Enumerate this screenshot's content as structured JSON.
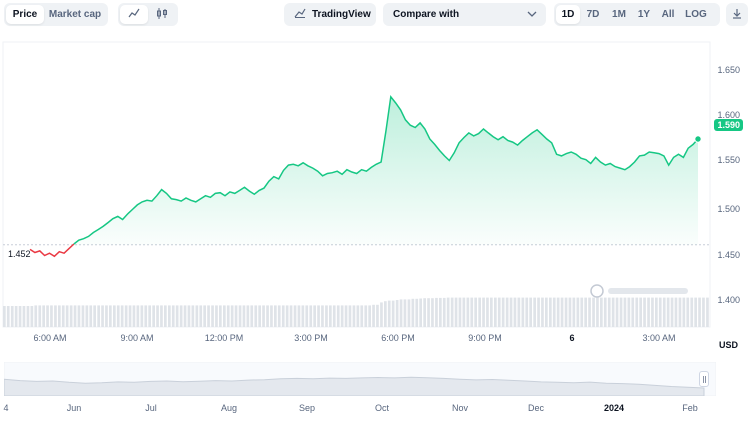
{
  "toolbar": {
    "metric_tabs": [
      "Price",
      "Market cap"
    ],
    "trading_view_label": "TradingView",
    "compare_label": "Compare with",
    "ranges": [
      "1D",
      "7D",
      "1M",
      "1Y",
      "All",
      "LOG"
    ],
    "active_range": "1D"
  },
  "chart_data": {
    "type": "line",
    "y_ticks": [
      "1.650",
      "1.600",
      "1.550",
      "1.500",
      "1.450",
      "1.400"
    ],
    "ylim": [
      1.38,
      1.68
    ],
    "x_ticks": [
      "6:00 AM",
      "9:00 AM",
      "12:00 PM",
      "3:00 PM",
      "6:00 PM",
      "9:00 PM",
      "6",
      "3:00 AM"
    ],
    "currency": "USD",
    "start_price_label": "1.452",
    "current_price_label": "1.590",
    "start_price": 1.452,
    "series": [
      {
        "values": [
          1.446,
          1.442,
          1.444,
          1.438,
          1.441,
          1.437,
          1.443,
          1.441,
          1.447,
          1.453,
          1.458,
          1.46,
          1.463,
          1.468,
          1.472,
          1.476,
          1.481,
          1.486,
          1.489,
          1.485,
          1.492,
          1.498,
          1.504,
          1.508,
          1.51,
          1.509,
          1.516,
          1.524,
          1.519,
          1.512,
          1.511,
          1.509,
          1.513,
          1.51,
          1.508,
          1.512,
          1.516,
          1.514,
          1.519,
          1.52,
          1.516,
          1.521,
          1.519,
          1.523,
          1.527,
          1.522,
          1.518,
          1.523,
          1.526,
          1.535,
          1.541,
          1.538,
          1.549,
          1.556,
          1.557,
          1.555,
          1.559,
          1.555,
          1.552,
          1.548,
          1.542,
          1.545,
          1.546,
          1.548,
          1.544,
          1.55,
          1.547,
          1.545,
          1.55,
          1.548,
          1.553,
          1.557,
          1.56,
          1.6,
          1.645,
          1.637,
          1.628,
          1.615,
          1.608,
          1.605,
          1.611,
          1.603,
          1.59,
          1.583,
          1.575,
          1.568,
          1.562,
          1.572,
          1.585,
          1.592,
          1.598,
          1.594,
          1.597,
          1.603,
          1.598,
          1.593,
          1.589,
          1.593,
          1.588,
          1.586,
          1.582,
          1.588,
          1.593,
          1.598,
          1.602,
          1.596,
          1.59,
          1.585,
          1.57,
          1.568,
          1.571,
          1.573,
          1.57,
          1.565,
          1.563,
          1.558,
          1.566,
          1.56,
          1.556,
          1.558,
          1.554,
          1.552,
          1.55,
          1.554,
          1.56,
          1.568,
          1.569,
          1.573,
          1.572,
          1.571,
          1.568,
          1.556,
          1.566,
          1.57,
          1.566,
          1.578,
          1.583,
          1.59
        ],
        "volume": [
          0.7,
          0.7,
          0.7,
          0.7,
          0.7,
          0.7,
          0.72,
          0.72,
          0.72,
          0.72,
          0.72,
          0.72,
          0.72,
          0.72,
          0.72,
          0.72,
          0.72,
          0.72,
          0.72,
          0.72,
          0.72,
          0.72,
          0.72,
          0.72,
          0.72,
          0.72,
          0.72,
          0.72,
          0.72,
          0.72,
          0.72,
          0.72,
          0.72,
          0.72,
          0.72,
          0.72,
          0.72,
          0.72,
          0.72,
          0.72,
          0.72,
          0.72,
          0.72,
          0.72,
          0.72,
          0.72,
          0.72,
          0.72,
          0.72,
          0.72,
          0.72,
          0.72,
          0.72,
          0.72,
          0.72,
          0.72,
          0.72,
          0.72,
          0.72,
          0.72,
          0.72,
          0.72,
          0.72,
          0.72,
          0.72,
          0.72,
          0.72,
          0.72,
          0.72,
          0.72,
          0.72,
          0.72,
          0.74,
          0.82,
          0.86,
          0.88,
          0.9,
          0.92,
          0.92,
          0.94,
          0.94,
          0.95,
          0.96,
          0.96,
          0.97,
          0.97,
          0.98,
          0.98,
          0.98,
          0.98,
          0.98,
          0.98,
          0.98,
          0.98,
          0.98,
          0.98,
          0.98,
          0.98,
          0.98,
          0.98,
          0.98,
          0.98,
          0.98,
          0.98,
          0.98,
          0.98,
          0.98,
          0.98,
          0.98,
          0.98,
          0.98,
          0.98,
          0.98,
          0.98,
          0.98,
          0.98,
          0.98,
          0.98,
          0.98,
          0.98,
          0.98,
          0.98,
          0.98,
          0.98,
          0.98,
          0.98,
          0.98,
          0.98,
          0.98,
          0.98,
          0.98,
          0.98,
          0.98,
          0.98,
          0.98,
          0.98,
          0.98,
          0.98
        ]
      }
    ],
    "colors": {
      "up": "#16c784",
      "down": "#ea3943",
      "volume": "#dfe3e8"
    }
  },
  "navigator": {
    "labels": [
      "4",
      "Jun",
      "Jul",
      "Aug",
      "Sep",
      "Oct",
      "Nov",
      "Dec",
      "2024",
      "Jan",
      "Feb"
    ],
    "bold_labels": [
      "2024"
    ],
    "trend": [
      0.58,
      0.52,
      0.48,
      0.5,
      0.44,
      0.4,
      0.42,
      0.46,
      0.44,
      0.48,
      0.5,
      0.47,
      0.49,
      0.52,
      0.5,
      0.54,
      0.56,
      0.6,
      0.62,
      0.6,
      0.63,
      0.62,
      0.64,
      0.66,
      0.64,
      0.67,
      0.65,
      0.62,
      0.58,
      0.55,
      0.57,
      0.53,
      0.5,
      0.46,
      0.44,
      0.42,
      0.45,
      0.4,
      0.38,
      0.35,
      0.3,
      0.25,
      0.22,
      0.18
    ]
  }
}
